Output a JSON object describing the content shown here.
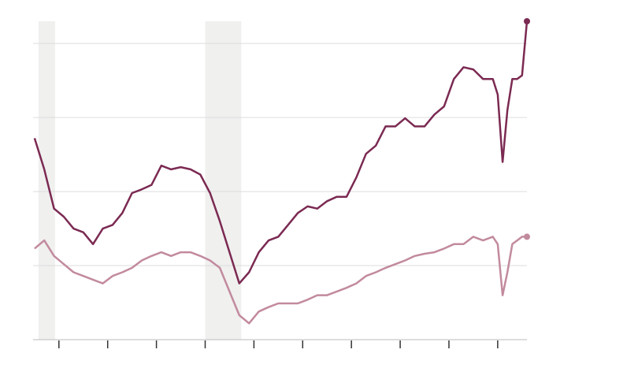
{
  "chart_data": {
    "type": "line",
    "x": [
      5,
      7,
      9,
      11,
      13,
      15,
      17,
      19,
      21,
      23,
      25,
      27,
      29,
      31,
      33,
      35,
      37,
      39,
      41,
      43,
      45,
      47,
      49,
      51,
      53,
      55,
      57,
      59,
      61,
      63,
      65,
      67,
      69,
      71,
      73,
      75,
      77,
      79,
      81,
      83,
      85,
      87,
      89,
      91,
      93,
      95,
      97,
      99,
      100,
      101,
      102,
      103,
      104,
      105,
      106
    ],
    "series": [
      {
        "color": "#7b2a52",
        "values": [
          2.72,
          2.3,
          1.77,
          1.66,
          1.5,
          1.45,
          1.29,
          1.5,
          1.55,
          1.71,
          1.98,
          2.03,
          2.09,
          2.35,
          2.3,
          2.33,
          2.3,
          2.23,
          1.98,
          1.6,
          1.18,
          0.76,
          0.91,
          1.18,
          1.34,
          1.39,
          1.55,
          1.71,
          1.8,
          1.77,
          1.87,
          1.93,
          1.93,
          2.19,
          2.51,
          2.62,
          2.88,
          2.88,
          2.99,
          2.88,
          2.88,
          3.04,
          3.15,
          3.52,
          3.68,
          3.65,
          3.52,
          3.52,
          3.31,
          2.4,
          3.1,
          3.52,
          3.52,
          3.57,
          4.3
        ]
      },
      {
        "color": "#c28a9e",
        "values": [
          1.23,
          1.34,
          1.13,
          1.02,
          0.91,
          0.86,
          0.81,
          0.76,
          0.86,
          0.91,
          0.97,
          1.07,
          1.13,
          1.18,
          1.13,
          1.18,
          1.18,
          1.13,
          1.07,
          0.97,
          0.65,
          0.33,
          0.22,
          0.38,
          0.44,
          0.49,
          0.49,
          0.49,
          0.54,
          0.6,
          0.6,
          0.65,
          0.7,
          0.76,
          0.86,
          0.91,
          0.97,
          1.02,
          1.07,
          1.13,
          1.16,
          1.18,
          1.23,
          1.29,
          1.29,
          1.39,
          1.34,
          1.39,
          1.29,
          0.6,
          0.91,
          1.29,
          1.34,
          1.39,
          1.39
        ]
      }
    ],
    "shaded": [
      [
        5.8,
        9.2
      ],
      [
        40,
        47.4
      ]
    ],
    "shade_color": "#f0f0ef",
    "xlim": [
      4.7,
      106
    ],
    "xticks": [
      10,
      20,
      30,
      40,
      50,
      60,
      70,
      80,
      90,
      100
    ],
    "ylim": [
      0,
      4.3
    ],
    "yticks": [
      0,
      1,
      2,
      3,
      4
    ],
    "grid": true
  }
}
